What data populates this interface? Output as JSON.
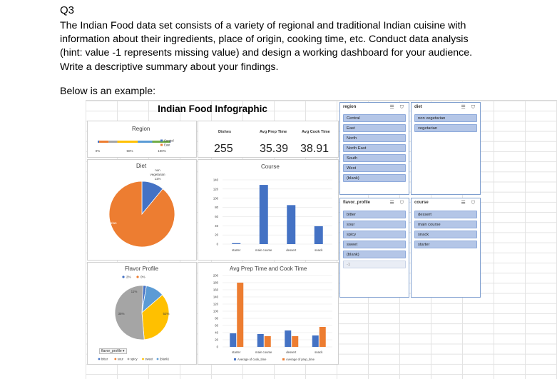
{
  "question": {
    "heading": "Q3",
    "lines": [
      "The Indian Food data set consists of a variety of regional and traditional Indian cuisine with",
      "information about their ingredients, place of origin, cooking time, etc. Conduct data analysis",
      "(hint: value -1 represents missing value) and design a working dashboard for your audience.",
      "Write a descriptive summary about your findings."
    ],
    "example_label": "Below is an example:"
  },
  "dashboard": {
    "title": "Indian Food Infographic",
    "kpis": {
      "dishes_label": "Dishes",
      "dishes_value": "255",
      "prep_label": "Avg Prep Time",
      "prep_value": "35.39",
      "cook_label": "Avg Cook Time",
      "cook_value": "38.91"
    },
    "region_chart": {
      "title": "Region",
      "legend": [
        "Central",
        "East"
      ],
      "axis_ticks": [
        "0%",
        "50%",
        "100%"
      ],
      "segments": [
        {
          "value": 0.02,
          "color": "#4472c4"
        },
        {
          "value": 0.13,
          "color": "#ed7d31"
        },
        {
          "value": 0.12,
          "color": "#a5a5a5"
        },
        {
          "value": 0.28,
          "color": "#ffc000"
        },
        {
          "value": 0.2,
          "color": "#5b9bd5"
        },
        {
          "value": 0.24,
          "color": "#70ad47"
        },
        {
          "value": 0.01,
          "color": "#264478"
        }
      ]
    },
    "diet_chart": {
      "title": "Diet",
      "label_nonveg": "non\nvegetarian\n11%",
      "label_veg": "vegetarian\n89%",
      "slices": [
        {
          "value": 0.11,
          "color": "#4472c4"
        },
        {
          "value": 0.89,
          "color": "#ed7d31"
        }
      ]
    },
    "flavor_chart": {
      "title": "Flavor Profile",
      "legend_top": [
        "2%",
        "0%"
      ],
      "slice_labels": [
        "11%",
        "35%",
        "52%"
      ],
      "slices": [
        {
          "value": 0.02,
          "color": "#4472c4"
        },
        {
          "value": 0.11,
          "color": "#5b9bd5"
        },
        {
          "value": 0.0,
          "color": "#ed7d31"
        },
        {
          "value": 0.35,
          "color": "#ffc000"
        },
        {
          "value": 0.52,
          "color": "#a5a5a5"
        }
      ],
      "filter_button": "flavor_profile ▾",
      "legend_bottom": [
        "bitter",
        "sour",
        "spicy",
        "sweet",
        "(blank)"
      ],
      "legend_bottom_colors": [
        "#4472c4",
        "#ed7d31",
        "#a5a5a5",
        "#ffc000",
        "#5b9bd5"
      ]
    },
    "course_chart": {
      "title": "Course",
      "type": "bar",
      "categories": [
        "starter",
        "main course",
        "dessert",
        "snack"
      ],
      "values": [
        2,
        129,
        85,
        39
      ],
      "ylim": [
        0,
        140
      ],
      "yticks": [
        "0",
        "20",
        "40",
        "60",
        "80",
        "100",
        "120",
        "140"
      ],
      "color": "#4472c4"
    },
    "time_chart": {
      "title": "Avg Prep Time and Cook Time",
      "type": "bar",
      "categories": [
        "starter",
        "main course",
        "dessert",
        "snack"
      ],
      "series": [
        {
          "name": "Average of cook_time",
          "color": "#4472c4",
          "values": [
            38,
            36,
            46,
            32
          ]
        },
        {
          "name": "Average of prep_time",
          "color": "#ed7d31",
          "values": [
            180,
            30,
            30,
            56
          ]
        }
      ],
      "ylim": [
        0,
        200
      ],
      "yticks": [
        "0",
        "20",
        "40",
        "60",
        "80",
        "100",
        "120",
        "140",
        "160",
        "180",
        "200"
      ]
    }
  },
  "slicers": {
    "region": {
      "title": "region",
      "items": [
        "Central",
        "East",
        "North",
        "North East",
        "South",
        "West",
        "(blank)"
      ]
    },
    "diet": {
      "title": "diet",
      "items": [
        "non vegetarian",
        "vegetarian"
      ]
    },
    "flavor": {
      "title": "flavor_profile",
      "items": [
        "bitter",
        "sour",
        "spicy",
        "sweet",
        "(blank)"
      ],
      "empty_items": [
        "-1"
      ]
    },
    "course": {
      "title": "course",
      "items": [
        "dessert",
        "main course",
        "snack",
        "starter"
      ]
    }
  }
}
